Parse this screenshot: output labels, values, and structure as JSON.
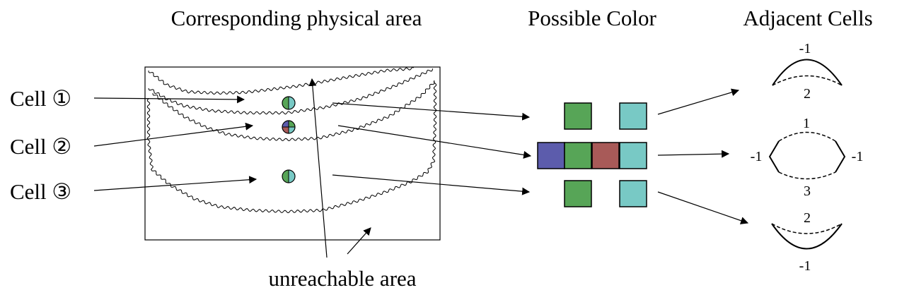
{
  "titles": {
    "physical_area": "Corresponding physical area",
    "possible_color": "Possible Color",
    "adjacent_cells": "Adjacent Cells"
  },
  "cells": [
    {
      "label": "Cell ①"
    },
    {
      "label": "Cell ②"
    },
    {
      "label": "Cell ③"
    }
  ],
  "unreachable_label": "unreachable area",
  "colors": {
    "green": "#57a557",
    "teal": "#78c9c5",
    "blue": "#5c5cac",
    "red": "#a85a58"
  },
  "possible_colors": [
    [
      "green",
      "teal"
    ],
    [
      "blue",
      "green",
      "red",
      "teal"
    ],
    [
      "green",
      "teal"
    ]
  ],
  "adjacent": {
    "cell1": {
      "top": "-1",
      "bottom": "2"
    },
    "cell2": {
      "top": "1",
      "left": "-1",
      "right": "-1",
      "bottom": "3"
    },
    "cell3": {
      "top": "2",
      "bottom": "-1"
    }
  }
}
